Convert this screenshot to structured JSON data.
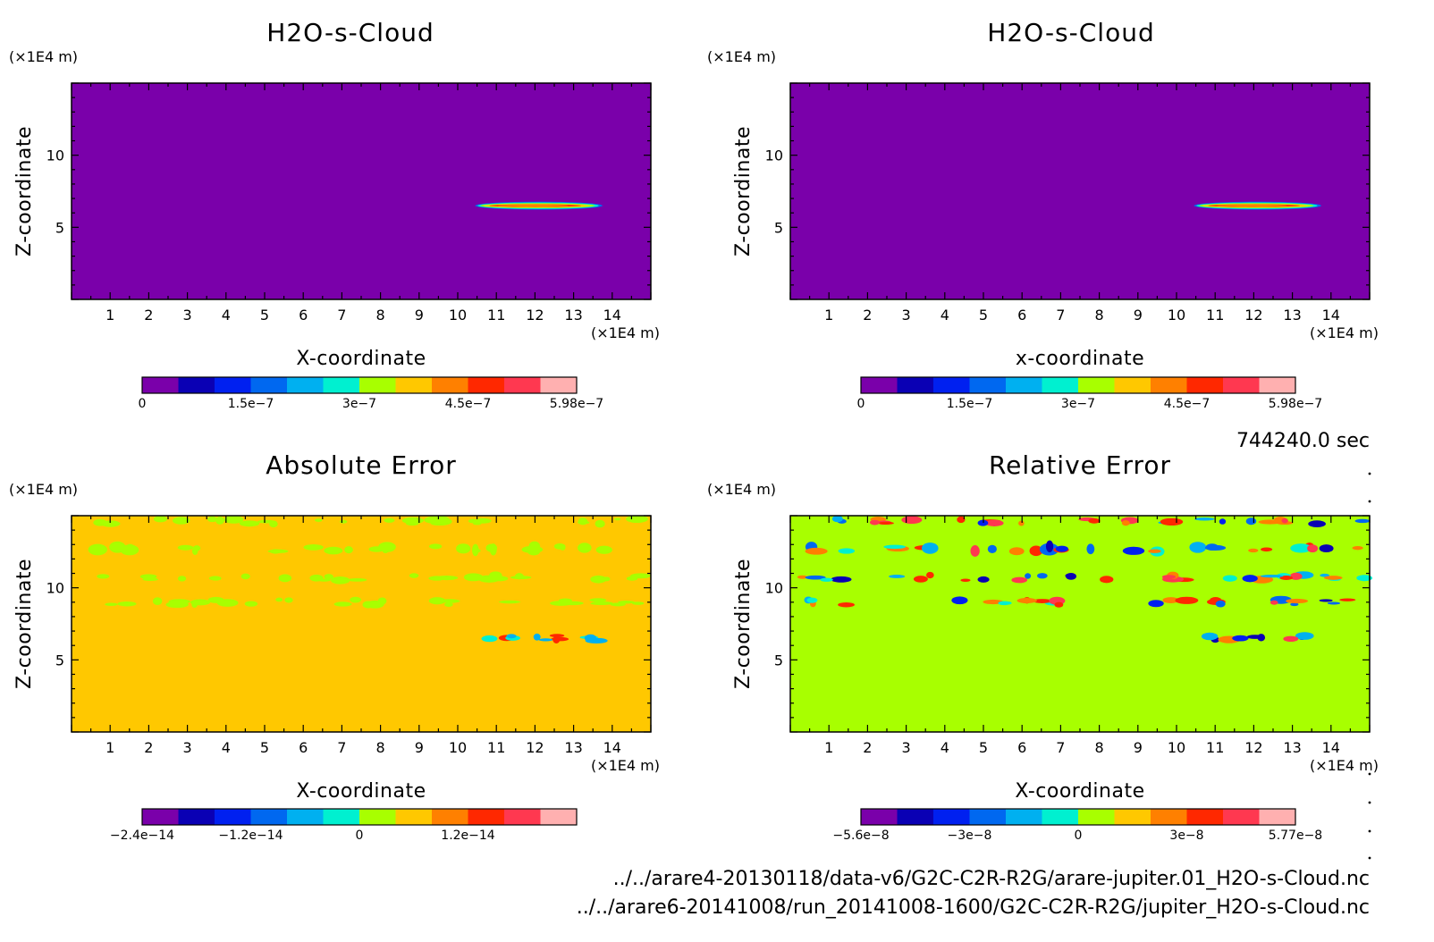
{
  "chart_data": [
    {
      "type": "heatmap",
      "title": "H2O-s-Cloud",
      "xlabel": "X-coordinate",
      "ylabel": "Z-coordinate",
      "x_unit": "(×1E4 m)",
      "y_unit": "(×1E4 m)",
      "xlim": [
        0,
        15
      ],
      "ylim": [
        0,
        15
      ],
      "x_ticks": [
        1,
        2,
        3,
        4,
        5,
        6,
        7,
        8,
        9,
        10,
        11,
        12,
        13,
        14
      ],
      "y_ticks": [
        5,
        10
      ],
      "colorbar": {
        "min": 0,
        "max": 5.98e-07,
        "labels": [
          "0",
          "1.5e-7",
          "3e-7",
          "4.5e-7",
          "5.98e-7"
        ]
      },
      "background_level": 0,
      "features": [
        {
          "x_center": 12.1,
          "z_center": 6.5,
          "x_width": 3.3,
          "z_width": 0.35,
          "peak": 5.98e-07
        }
      ]
    },
    {
      "type": "heatmap",
      "title": "H2O-s-Cloud",
      "xlabel": "x-coordinate",
      "ylabel": "Z-coordinate",
      "x_unit": "(×1E4 m)",
      "y_unit": "(×1E4 m)",
      "xlim": [
        0,
        15
      ],
      "ylim": [
        0,
        15
      ],
      "x_ticks": [
        1,
        2,
        3,
        4,
        5,
        6,
        7,
        8,
        9,
        10,
        11,
        12,
        13,
        14
      ],
      "y_ticks": [
        5,
        10
      ],
      "colorbar": {
        "min": 0,
        "max": 5.98e-07,
        "labels": [
          "0",
          "1.5e-7",
          "3e-7",
          "4.5e-7",
          "5.98e-7"
        ]
      },
      "background_level": 0,
      "features": [
        {
          "x_center": 12.1,
          "z_center": 6.5,
          "x_width": 3.3,
          "z_width": 0.35,
          "peak": 5.98e-07
        }
      ]
    },
    {
      "type": "heatmap",
      "title": "Absolute Error",
      "xlabel": "X-coordinate",
      "ylabel": "Z-coordinate",
      "x_unit": "(×1E4 m)",
      "y_unit": "(×1E4 m)",
      "xlim": [
        0,
        15
      ],
      "ylim": [
        0,
        15
      ],
      "x_ticks": [
        1,
        2,
        3,
        4,
        5,
        6,
        7,
        8,
        9,
        10,
        11,
        12,
        13,
        14
      ],
      "y_ticks": [
        5,
        10
      ],
      "colorbar": {
        "min": -2.4e-14,
        "max": 2.4e-14,
        "labels": [
          "-2.4e-14",
          "-1.2e-14",
          "0",
          "1.2e-14"
        ]
      },
      "background_level": 0,
      "bands_z": [
        14.6,
        12.7,
        10.7,
        9.0,
        6.5
      ]
    },
    {
      "type": "heatmap",
      "title": "Relative Error",
      "xlabel": "X-coordinate",
      "ylabel": "Z-coordinate",
      "x_unit": "(×1E4 m)",
      "y_unit": "(×1E4 m)",
      "xlim": [
        0,
        15
      ],
      "ylim": [
        0,
        15
      ],
      "x_ticks": [
        1,
        2,
        3,
        4,
        5,
        6,
        7,
        8,
        9,
        10,
        11,
        12,
        13,
        14
      ],
      "y_ticks": [
        5,
        10
      ],
      "colorbar": {
        "min": -5.6e-08,
        "max": 5.77e-08,
        "labels": [
          "-5.6e-8",
          "-3e-8",
          "0",
          "3e-8",
          "5.77e-8"
        ]
      },
      "background_level": 0,
      "bands_z": [
        14.6,
        12.7,
        10.7,
        9.0,
        6.5
      ]
    }
  ],
  "colormap": [
    "#7a00aa",
    "#0a00b4",
    "#0020f0",
    "#0068f0",
    "#00b0f0",
    "#00f0d0",
    "#a8ff00",
    "#ffc800",
    "#ff8000",
    "#ff2800",
    "#ff3850",
    "#ffb0b0"
  ],
  "time_label": "744240.0 sec",
  "files": [
    "../../arare4-20130118/data-v6/G2C-C2R-R2G/arare-jupiter.01_H2O-s-Cloud.nc",
    "../../arare6-20141008/run_20141008-1600/G2C-C2R-R2G/jupiter_H2O-s-Cloud.nc"
  ]
}
